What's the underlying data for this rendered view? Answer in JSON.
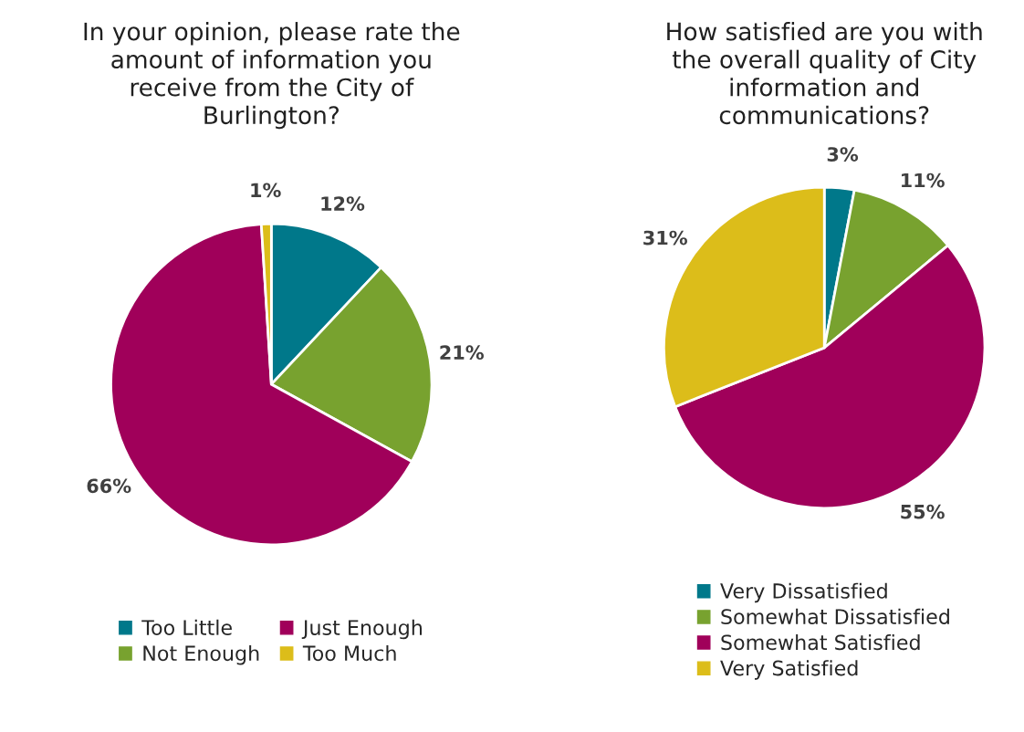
{
  "chart_data": [
    {
      "type": "pie",
      "title": "In your opinion, please rate the\namount of information you\nreceive from the City of\nBurlington?",
      "categories": [
        "Too Little",
        "Not Enough",
        "Just Enough",
        "Too Much"
      ],
      "values": [
        12,
        21,
        66,
        1
      ],
      "colors": [
        "#00788a",
        "#78a22f",
        "#a0005a",
        "#dcbd1a"
      ],
      "value_labels": [
        "12%",
        "21%",
        "66%",
        "1%"
      ],
      "legend": "bottom"
    },
    {
      "type": "pie",
      "title": "How satisfied are you with\nthe overall quality of City\ninformation and\ncommunications?",
      "categories": [
        "Very Dissatisfied",
        "Somewhat Dissatisfied",
        "Somewhat Satisfied",
        "Very Satisfied"
      ],
      "values": [
        3,
        11,
        55,
        31
      ],
      "colors": [
        "#00788a",
        "#78a22f",
        "#a0005a",
        "#dcbd1a"
      ],
      "value_labels": [
        "3%",
        "11%",
        "55%",
        "31%"
      ],
      "legend": "bottom"
    }
  ]
}
